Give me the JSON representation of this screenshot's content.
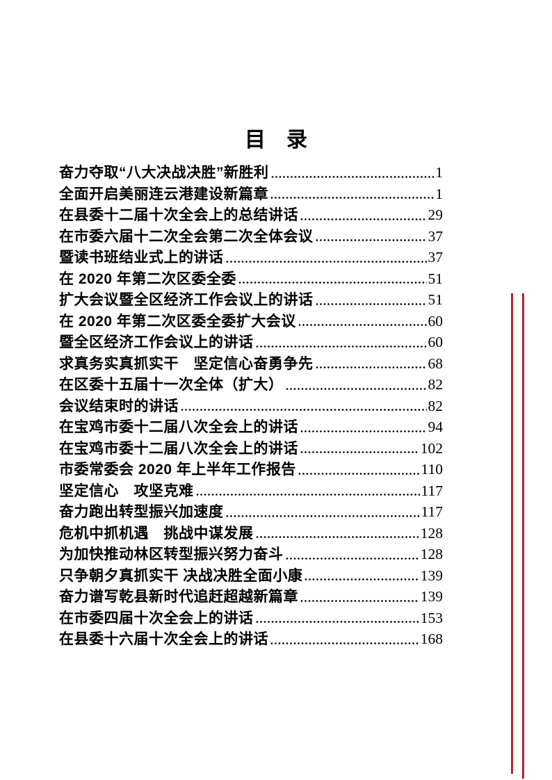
{
  "page": {
    "title": "目　录"
  },
  "toc": {
    "entries": [
      {
        "title": "奋力夺取“八大决战决胜”新胜利",
        "page": "1"
      },
      {
        "title": "全面开启美丽连云港建设新篇章",
        "page": "1"
      },
      {
        "title": "在县委十二届十次全会上的总结讲话",
        "page": "29"
      },
      {
        "title": "在市委六届十二次全会第二次全体会议",
        "page": "37"
      },
      {
        "title": "暨读书班结业式上的讲话",
        "page": "37"
      },
      {
        "title": "在 2020 年第二次区委全委",
        "page": "51"
      },
      {
        "title": "扩大会议暨全区经济工作会议上的讲话",
        "page": "51"
      },
      {
        "title": "在 2020 年第二次区委全委扩大会议",
        "page": "60"
      },
      {
        "title": "暨全区经济工作会议上的讲话",
        "page": "60"
      },
      {
        "title": "求真务实真抓实干　坚定信心奋勇争先",
        "page": "68"
      },
      {
        "title": "在区委十五届十一次全体（扩大）",
        "page": "82"
      },
      {
        "title": "会议结束时的讲话",
        "page": "82"
      },
      {
        "title": "在宝鸡市委十二届八次全会上的讲话",
        "page": "94"
      },
      {
        "title": "在宝鸡市委十二届八次全会上的讲话",
        "page": "102"
      },
      {
        "title": "市委常委会 2020 年上半年工作报告",
        "page": "110"
      },
      {
        "title": "坚定信心　攻坚克难",
        "page": "117"
      },
      {
        "title": "奋力跑出转型振兴加速度",
        "page": "117"
      },
      {
        "title": "危机中抓机遇　挑战中谋发展",
        "page": "128"
      },
      {
        "title": "为加快推动林区转型振兴努力奋斗",
        "page": "128"
      },
      {
        "title": "只争朝夕真抓实干 决战决胜全面小康",
        "page": "139"
      },
      {
        "title": "奋力谱写乾县新时代追赶超越新篇章",
        "page": "139"
      },
      {
        "title": "在市委四届十次全会上的讲话",
        "page": "153"
      },
      {
        "title": "在县委十六届十次全会上的讲话",
        "page": "168"
      }
    ]
  },
  "colors": {
    "accent_red": "#b22428",
    "text": "#000000",
    "background": "#ffffff"
  }
}
